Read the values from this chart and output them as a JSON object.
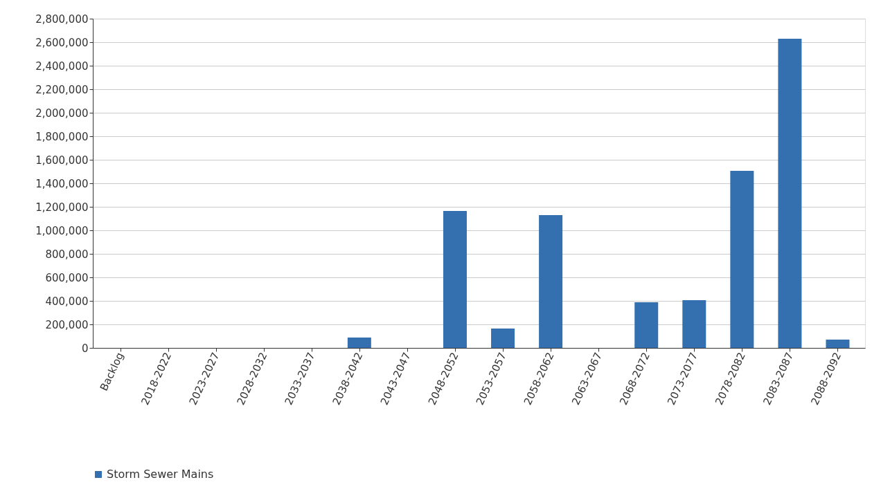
{
  "chart_data": {
    "type": "bar",
    "categories": [
      "Backlog",
      "2018-2022",
      "2023-2027",
      "2028-2032",
      "2033-2037",
      "2038-2042",
      "2043-2047",
      "2048-2052",
      "2053-2057",
      "2058-2062",
      "2063-2067",
      "2068-2072",
      "2073-2077",
      "2078-2082",
      "2083-2087",
      "2088-2092"
    ],
    "series": [
      {
        "name": "Storm Sewer Mains",
        "color": "#3470b0",
        "values": [
          0,
          0,
          0,
          0,
          0,
          88000,
          0,
          1165000,
          165000,
          1129000,
          0,
          388000,
          406000,
          1506000,
          2629000,
          70000
        ]
      }
    ],
    "ylim": [
      0,
      2800000
    ],
    "yticks": [
      0,
      {
        "value": 200000,
        "label": "200,000"
      },
      {
        "value": 400000,
        "label": "400,000"
      },
      {
        "value": 600000,
        "label": "600,000"
      },
      {
        "value": 800000,
        "label": "800,000"
      },
      {
        "value": 1000000,
        "label": "1,000,000"
      },
      {
        "value": 1200000,
        "label": "1,200,000"
      },
      {
        "value": 1400000,
        "label": "1,400,000"
      },
      {
        "value": 1600000,
        "label": "1,600,000"
      },
      {
        "value": 1800000,
        "label": "1,800,000"
      },
      {
        "value": 2000000,
        "label": "2,000,000"
      },
      {
        "value": 2200000,
        "label": "2,200,000"
      },
      {
        "value": 2400000,
        "label": "2,400,000"
      },
      {
        "value": 2600000,
        "label": "2,600,000"
      },
      {
        "value": 2800000,
        "label": "2,800,000"
      }
    ],
    "grid": "y",
    "legend": "bottom"
  }
}
